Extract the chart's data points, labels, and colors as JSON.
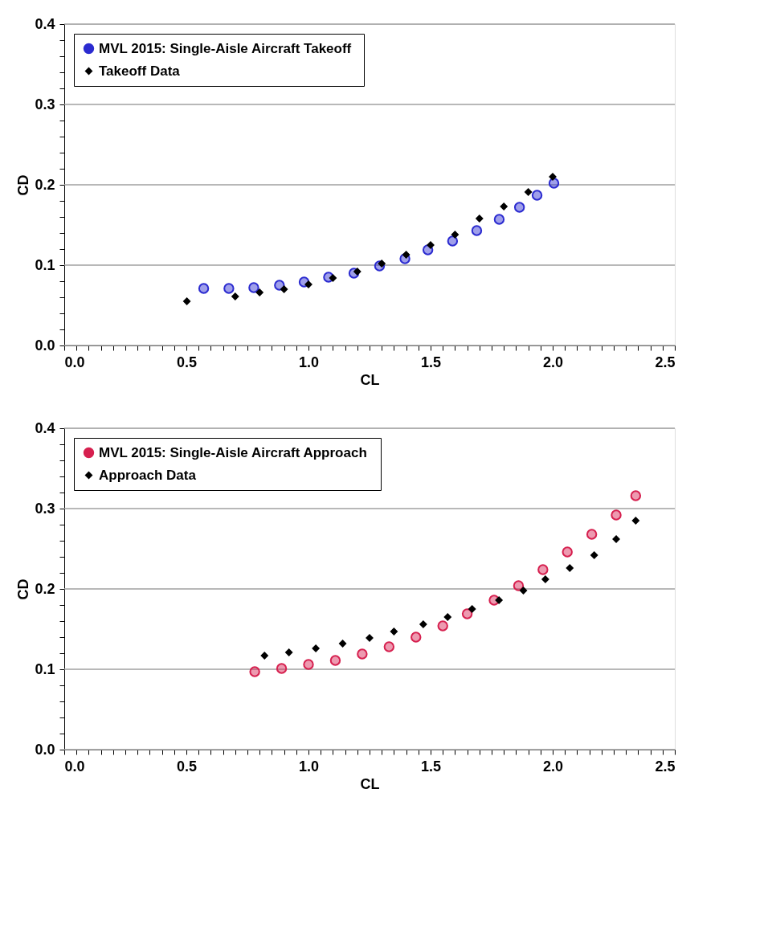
{
  "chart_data": [
    {
      "type": "scatter",
      "xlabel": "CL",
      "ylabel": "CD",
      "xlim": [
        0,
        2.5
      ],
      "ylim": [
        0,
        0.4
      ],
      "xticks": [
        {
          "value": 0,
          "label": "0.0"
        },
        {
          "value": 0.05,
          "label": null
        },
        {
          "value": 0.1,
          "label": null
        },
        {
          "value": 0.15,
          "label": null
        },
        {
          "value": 0.2,
          "label": null
        },
        {
          "value": 0.25,
          "label": null
        },
        {
          "value": 0.3,
          "label": null
        },
        {
          "value": 0.35,
          "label": null
        },
        {
          "value": 0.4,
          "label": null
        },
        {
          "value": 0.45,
          "label": null
        },
        {
          "value": 0.5,
          "label": "0.5"
        },
        {
          "value": 0.55,
          "label": null
        },
        {
          "value": 0.6,
          "label": null
        },
        {
          "value": 0.65,
          "label": null
        },
        {
          "value": 0.7,
          "label": null
        },
        {
          "value": 0.75,
          "label": null
        },
        {
          "value": 0.8,
          "label": null
        },
        {
          "value": 0.85,
          "label": null
        },
        {
          "value": 0.9,
          "label": null
        },
        {
          "value": 0.95,
          "label": null
        },
        {
          "value": 1.0,
          "label": "1.0"
        },
        {
          "value": 1.05,
          "label": null
        },
        {
          "value": 1.1,
          "label": null
        },
        {
          "value": 1.15,
          "label": null
        },
        {
          "value": 1.2,
          "label": null
        },
        {
          "value": 1.25,
          "label": null
        },
        {
          "value": 1.3,
          "label": null
        },
        {
          "value": 1.35,
          "label": null
        },
        {
          "value": 1.4,
          "label": null
        },
        {
          "value": 1.45,
          "label": null
        },
        {
          "value": 1.5,
          "label": "1.5"
        },
        {
          "value": 1.55,
          "label": null
        },
        {
          "value": 1.6,
          "label": null
        },
        {
          "value": 1.65,
          "label": null
        },
        {
          "value": 1.7,
          "label": null
        },
        {
          "value": 1.75,
          "label": null
        },
        {
          "value": 1.8,
          "label": null
        },
        {
          "value": 1.85,
          "label": null
        },
        {
          "value": 1.9,
          "label": null
        },
        {
          "value": 1.95,
          "label": null
        },
        {
          "value": 2.0,
          "label": "2.0"
        },
        {
          "value": 2.05,
          "label": null
        },
        {
          "value": 2.1,
          "label": null
        },
        {
          "value": 2.15,
          "label": null
        },
        {
          "value": 2.2,
          "label": null
        },
        {
          "value": 2.25,
          "label": null
        },
        {
          "value": 2.3,
          "label": null
        },
        {
          "value": 2.35,
          "label": null
        },
        {
          "value": 2.4,
          "label": null
        },
        {
          "value": 2.45,
          "label": null
        },
        {
          "value": 2.5,
          "label": "2.5"
        }
      ],
      "yticks": [
        {
          "value": 0,
          "label": "0.0"
        },
        {
          "value": 0.02,
          "label": null
        },
        {
          "value": 0.04,
          "label": null
        },
        {
          "value": 0.06,
          "label": null
        },
        {
          "value": 0.08,
          "label": null
        },
        {
          "value": 0.1,
          "label": "0.1"
        },
        {
          "value": 0.12,
          "label": null
        },
        {
          "value": 0.14,
          "label": null
        },
        {
          "value": 0.16,
          "label": null
        },
        {
          "value": 0.18,
          "label": null
        },
        {
          "value": 0.2,
          "label": "0.2"
        },
        {
          "value": 0.22,
          "label": null
        },
        {
          "value": 0.24,
          "label": null
        },
        {
          "value": 0.26,
          "label": null
        },
        {
          "value": 0.28,
          "label": null
        },
        {
          "value": 0.3,
          "label": "0.3"
        },
        {
          "value": 0.32,
          "label": null
        },
        {
          "value": 0.34,
          "label": null
        },
        {
          "value": 0.36,
          "label": null
        },
        {
          "value": 0.38,
          "label": null
        },
        {
          "value": 0.4,
          "label": "0.4"
        }
      ],
      "grid": "y",
      "legend": "top left",
      "series": [
        {
          "name": "MVL 2015:  Single-Aisle Aircraft Takeoff",
          "color": "#2b2bd0",
          "marker": "circle",
          "x": [
            0.571,
            0.674,
            0.776,
            0.881,
            0.982,
            1.082,
            1.186,
            1.291,
            1.395,
            1.489,
            1.59,
            1.689,
            1.781,
            1.864,
            1.936,
            2.005
          ],
          "values": [
            0.071,
            0.071,
            0.072,
            0.075,
            0.079,
            0.085,
            0.09,
            0.099,
            0.108,
            0.119,
            0.13,
            0.143,
            0.157,
            0.172,
            0.187,
            0.202
          ]
        },
        {
          "name": "Takeoff Data",
          "color": "#000000",
          "marker": "diamond",
          "x": [
            0.502,
            0.7,
            0.8,
            0.9,
            1.0,
            1.1,
            1.2,
            1.3,
            1.4,
            1.5,
            1.6,
            1.7,
            1.8,
            1.9,
            2.0
          ],
          "values": [
            0.055,
            0.061,
            0.066,
            0.07,
            0.076,
            0.084,
            0.092,
            0.102,
            0.113,
            0.125,
            0.138,
            0.158,
            0.173,
            0.191,
            0.21
          ]
        }
      ]
    },
    {
      "type": "scatter",
      "xlabel": "CL",
      "ylabel": "CD",
      "xlim": [
        0,
        2.5
      ],
      "ylim": [
        0,
        0.4
      ],
      "xticks": [
        {
          "value": 0,
          "label": "0.0"
        },
        {
          "value": 0.05,
          "label": null
        },
        {
          "value": 0.1,
          "label": null
        },
        {
          "value": 0.15,
          "label": null
        },
        {
          "value": 0.2,
          "label": null
        },
        {
          "value": 0.25,
          "label": null
        },
        {
          "value": 0.3,
          "label": null
        },
        {
          "value": 0.35,
          "label": null
        },
        {
          "value": 0.4,
          "label": null
        },
        {
          "value": 0.45,
          "label": null
        },
        {
          "value": 0.5,
          "label": "0.5"
        },
        {
          "value": 0.55,
          "label": null
        },
        {
          "value": 0.6,
          "label": null
        },
        {
          "value": 0.65,
          "label": null
        },
        {
          "value": 0.7,
          "label": null
        },
        {
          "value": 0.75,
          "label": null
        },
        {
          "value": 0.8,
          "label": null
        },
        {
          "value": 0.85,
          "label": null
        },
        {
          "value": 0.9,
          "label": null
        },
        {
          "value": 0.95,
          "label": null
        },
        {
          "value": 1.0,
          "label": "1.0"
        },
        {
          "value": 1.05,
          "label": null
        },
        {
          "value": 1.1,
          "label": null
        },
        {
          "value": 1.15,
          "label": null
        },
        {
          "value": 1.2,
          "label": null
        },
        {
          "value": 1.25,
          "label": null
        },
        {
          "value": 1.3,
          "label": null
        },
        {
          "value": 1.35,
          "label": null
        },
        {
          "value": 1.4,
          "label": null
        },
        {
          "value": 1.45,
          "label": null
        },
        {
          "value": 1.5,
          "label": "1.5"
        },
        {
          "value": 1.55,
          "label": null
        },
        {
          "value": 1.6,
          "label": null
        },
        {
          "value": 1.65,
          "label": null
        },
        {
          "value": 1.7,
          "label": null
        },
        {
          "value": 1.75,
          "label": null
        },
        {
          "value": 1.8,
          "label": null
        },
        {
          "value": 1.85,
          "label": null
        },
        {
          "value": 1.9,
          "label": null
        },
        {
          "value": 1.95,
          "label": null
        },
        {
          "value": 2.0,
          "label": "2.0"
        },
        {
          "value": 2.05,
          "label": null
        },
        {
          "value": 2.1,
          "label": null
        },
        {
          "value": 2.15,
          "label": null
        },
        {
          "value": 2.2,
          "label": null
        },
        {
          "value": 2.25,
          "label": null
        },
        {
          "value": 2.3,
          "label": null
        },
        {
          "value": 2.35,
          "label": null
        },
        {
          "value": 2.4,
          "label": null
        },
        {
          "value": 2.45,
          "label": null
        },
        {
          "value": 2.5,
          "label": "2.5"
        }
      ],
      "yticks": [
        {
          "value": 0,
          "label": "0.0"
        },
        {
          "value": 0.02,
          "label": null
        },
        {
          "value": 0.04,
          "label": null
        },
        {
          "value": 0.06,
          "label": null
        },
        {
          "value": 0.08,
          "label": null
        },
        {
          "value": 0.1,
          "label": "0.1"
        },
        {
          "value": 0.12,
          "label": null
        },
        {
          "value": 0.14,
          "label": null
        },
        {
          "value": 0.16,
          "label": null
        },
        {
          "value": 0.18,
          "label": null
        },
        {
          "value": 0.2,
          "label": "0.2"
        },
        {
          "value": 0.22,
          "label": null
        },
        {
          "value": 0.24,
          "label": null
        },
        {
          "value": 0.26,
          "label": null
        },
        {
          "value": 0.28,
          "label": null
        },
        {
          "value": 0.3,
          "label": "0.3"
        },
        {
          "value": 0.32,
          "label": null
        },
        {
          "value": 0.34,
          "label": null
        },
        {
          "value": 0.36,
          "label": null
        },
        {
          "value": 0.38,
          "label": null
        },
        {
          "value": 0.4,
          "label": "0.4"
        }
      ],
      "grid": "y",
      "legend": "top left",
      "series": [
        {
          "name": "MVL 2015:  Single-Aisle Aircraft Approach",
          "color": "#d6204f",
          "marker": "circle",
          "x": [
            0.78,
            0.89,
            1.0,
            1.11,
            1.22,
            1.33,
            1.44,
            1.55,
            1.65,
            1.76,
            1.86,
            1.96,
            2.06,
            2.16,
            2.26,
            2.34
          ],
          "values": [
            0.097,
            0.101,
            0.106,
            0.111,
            0.119,
            0.128,
            0.14,
            0.154,
            0.169,
            0.186,
            0.204,
            0.224,
            0.246,
            0.268,
            0.292,
            0.316
          ]
        },
        {
          "name": "Approach Data",
          "color": "#000000",
          "marker": "diamond",
          "x": [
            0.82,
            0.92,
            1.03,
            1.14,
            1.25,
            1.35,
            1.47,
            1.57,
            1.67,
            1.78,
            1.88,
            1.97,
            2.07,
            2.17,
            2.26,
            2.34
          ],
          "values": [
            0.117,
            0.121,
            0.126,
            0.132,
            0.139,
            0.147,
            0.156,
            0.165,
            0.175,
            0.186,
            0.198,
            0.212,
            0.226,
            0.242,
            0.262,
            0.285
          ]
        }
      ]
    }
  ]
}
